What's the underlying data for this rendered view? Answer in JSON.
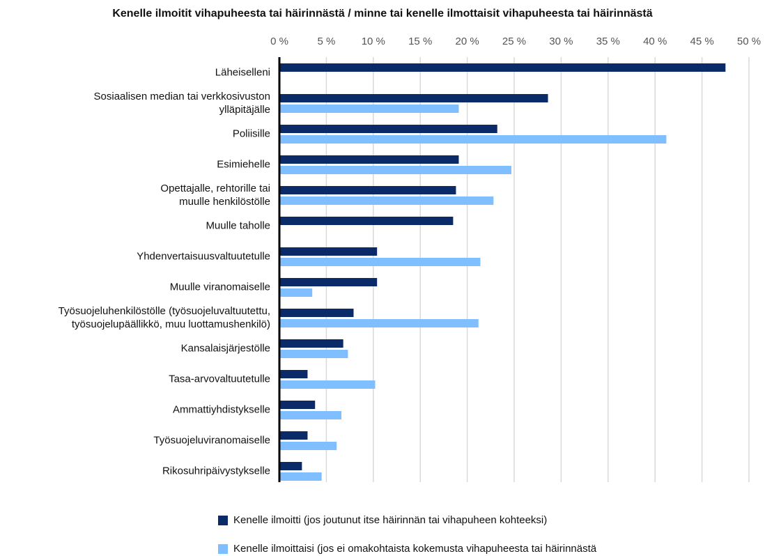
{
  "chart_data": {
    "type": "bar",
    "orientation": "horizontal",
    "title": "Kenelle ilmoitit vihapuheesta tai häirinnästä / minne tai kenelle ilmottaisit vihapuheesta tai häirinnästä",
    "categories": [
      "Läheiselleni",
      "Sosiaalisen median tai verkkosivuston\nylläpitäjälle",
      "Poliisille",
      "Esimiehelle",
      "Opettajalle, rehtorille tai\nmuulle henkilöstölle",
      "Muulle taholle",
      "Yhdenvertaisuusvaltuutetulle",
      "Muulle viranomaiselle",
      "Työsuojeluhenkilöstölle (työsuojeluvaltuutettu,\ntyösuojelupäällikkö, muu luottamushenkilö)",
      "Kansalaisjärjestölle",
      "Tasa-arvovaltuutetulle",
      "Ammattiyhdistykselle",
      "Työsuojeluviranomaiselle",
      "Rikosuhripäivystykselle"
    ],
    "series": [
      {
        "name": "Kenelle ilmoitti (jos joutunut itse häirinnän tai vihapuheen kohteeksi)",
        "color": "#0b2b68",
        "values": [
          47.5,
          28.6,
          23.2,
          19.1,
          18.8,
          18.5,
          10.4,
          10.4,
          7.9,
          6.8,
          3.0,
          3.8,
          3.0,
          2.4
        ]
      },
      {
        "name": "Kenelle ilmoittaisi (jos ei omakohtaista kokemusta vihapuheesta tai häirinnästä",
        "color": "#80bfff",
        "values": [
          null,
          19.1,
          41.2,
          24.7,
          22.8,
          null,
          21.4,
          3.5,
          21.2,
          7.3,
          10.2,
          6.6,
          6.1,
          4.5
        ]
      }
    ],
    "xlim": [
      0,
      50
    ],
    "xticks": [
      {
        "value": 0,
        "label": "0 %"
      },
      {
        "value": 5,
        "label": "5 %"
      },
      {
        "value": 10,
        "label": "10 %"
      },
      {
        "value": 15,
        "label": "15 %"
      },
      {
        "value": 20,
        "label": "20 %"
      },
      {
        "value": 25,
        "label": "25 %"
      },
      {
        "value": 30,
        "label": "30 %"
      },
      {
        "value": 35,
        "label": "35 %"
      },
      {
        "value": 40,
        "label": "40 %"
      },
      {
        "value": 45,
        "label": "45 %"
      },
      {
        "value": 50,
        "label": "50 %"
      }
    ],
    "grid": true,
    "legend": "bottom"
  }
}
